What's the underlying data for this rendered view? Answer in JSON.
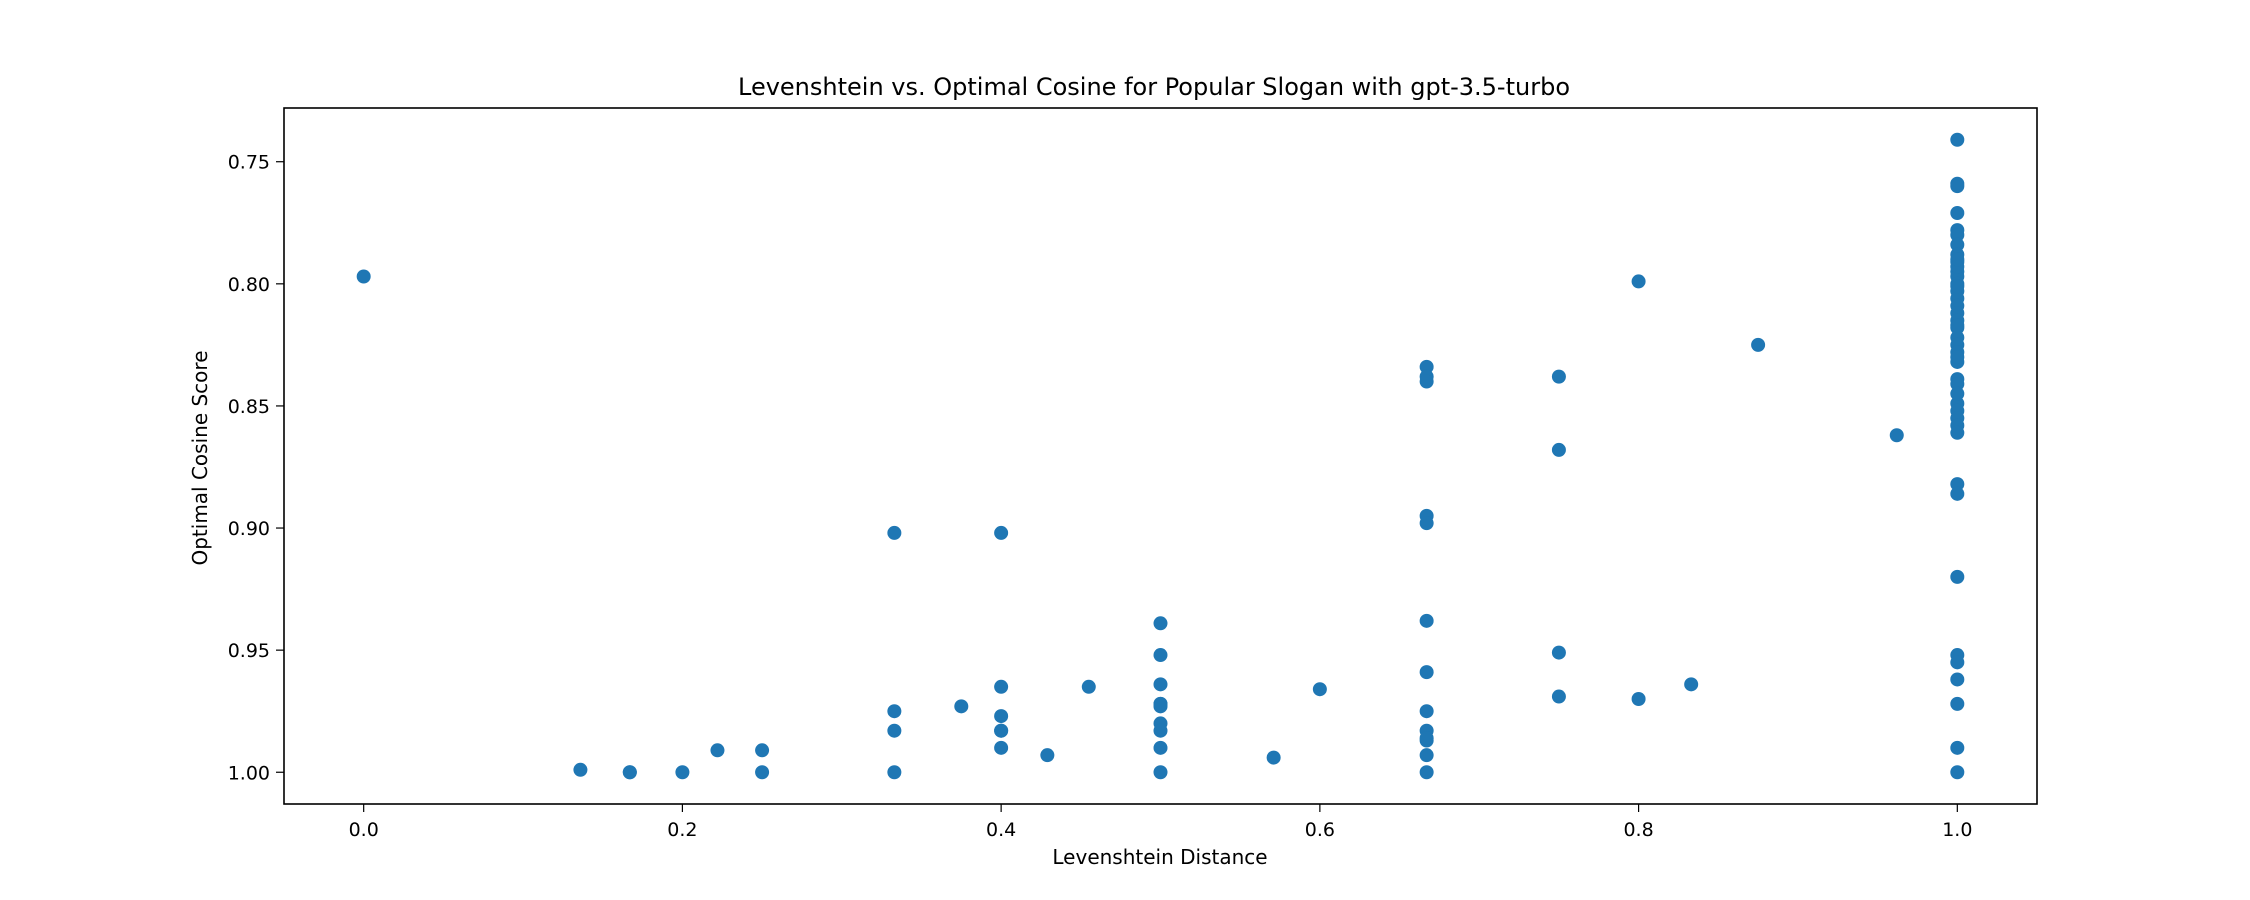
{
  "chart_data": {
    "type": "scatter",
    "title": "Levenshtein vs. Optimal Cosine for Popular Slogan with gpt-3.5-turbo",
    "xlabel": "Levenshtein Distance",
    "ylabel": "Optimal Cosine Score",
    "xlim": [
      -0.05,
      1.05
    ],
    "ylim": [
      1.013,
      0.728
    ],
    "y_inverted": true,
    "grid": false,
    "x_ticks": [
      0.0,
      0.2,
      0.4,
      0.6,
      0.8,
      1.0
    ],
    "x_tick_labels": [
      "0.0",
      "0.2",
      "0.4",
      "0.6",
      "0.8",
      "1.0"
    ],
    "y_ticks": [
      0.75,
      0.8,
      0.85,
      0.9,
      0.95,
      1.0
    ],
    "y_tick_labels": [
      "0.75",
      "0.80",
      "0.85",
      "0.90",
      "0.95",
      "1.00"
    ],
    "marker_color": "#1f77b4",
    "series": [
      {
        "name": "points",
        "x": [
          0.0,
          0.136,
          0.167,
          0.167,
          0.2,
          0.222,
          0.25,
          0.25,
          0.333,
          0.333,
          0.333,
          0.333,
          0.375,
          0.4,
          0.4,
          0.4,
          0.4,
          0.4,
          0.4,
          0.429,
          0.455,
          0.5,
          0.5,
          0.5,
          0.5,
          0.5,
          0.5,
          0.5,
          0.5,
          0.5,
          0.5,
          0.571,
          0.6,
          0.667,
          0.667,
          0.667,
          0.667,
          0.667,
          0.667,
          0.667,
          0.667,
          0.667,
          0.667,
          0.667,
          0.667,
          0.667,
          0.75,
          0.75,
          0.75,
          0.75,
          0.8,
          0.8,
          0.833,
          0.875,
          0.962,
          1.0,
          1.0,
          1.0,
          1.0,
          1.0,
          1.0,
          1.0,
          1.0,
          1.0,
          1.0,
          1.0,
          1.0,
          1.0,
          1.0,
          1.0,
          1.0,
          1.0,
          1.0,
          1.0,
          1.0,
          1.0,
          1.0,
          1.0,
          1.0,
          1.0,
          1.0,
          1.0,
          1.0,
          1.0,
          1.0,
          1.0,
          1.0,
          1.0,
          1.0,
          1.0,
          1.0,
          1.0,
          1.0,
          1.0,
          1.0,
          1.0,
          1.0,
          1.0,
          1.0
        ],
        "y": [
          0.797,
          0.999,
          1.0,
          1.0,
          1.0,
          0.991,
          0.991,
          1.0,
          0.902,
          0.975,
          0.983,
          1.0,
          0.973,
          0.902,
          0.965,
          0.977,
          0.983,
          0.99,
          0.983,
          0.993,
          0.965,
          0.939,
          0.952,
          0.964,
          0.972,
          0.973,
          0.98,
          0.983,
          0.99,
          1.0,
          0.972,
          0.994,
          0.966,
          0.834,
          0.838,
          0.84,
          0.895,
          0.898,
          0.938,
          0.959,
          0.975,
          0.983,
          0.987,
          0.993,
          1.0,
          0.986,
          0.838,
          0.868,
          0.951,
          0.969,
          0.799,
          0.97,
          0.964,
          0.825,
          0.862,
          0.741,
          0.759,
          0.76,
          0.771,
          0.778,
          0.78,
          0.784,
          0.788,
          0.791,
          0.795,
          0.797,
          0.8,
          0.803,
          0.806,
          0.809,
          0.812,
          0.815,
          0.818,
          0.822,
          0.825,
          0.828,
          0.832,
          0.839,
          0.841,
          0.849,
          0.852,
          0.855,
          0.858,
          0.861,
          0.882,
          0.886,
          0.92,
          0.952,
          0.955,
          0.962,
          0.972,
          0.99,
          1.0,
          0.793,
          0.79,
          0.801,
          0.817,
          0.845,
          0.83
        ]
      }
    ]
  }
}
